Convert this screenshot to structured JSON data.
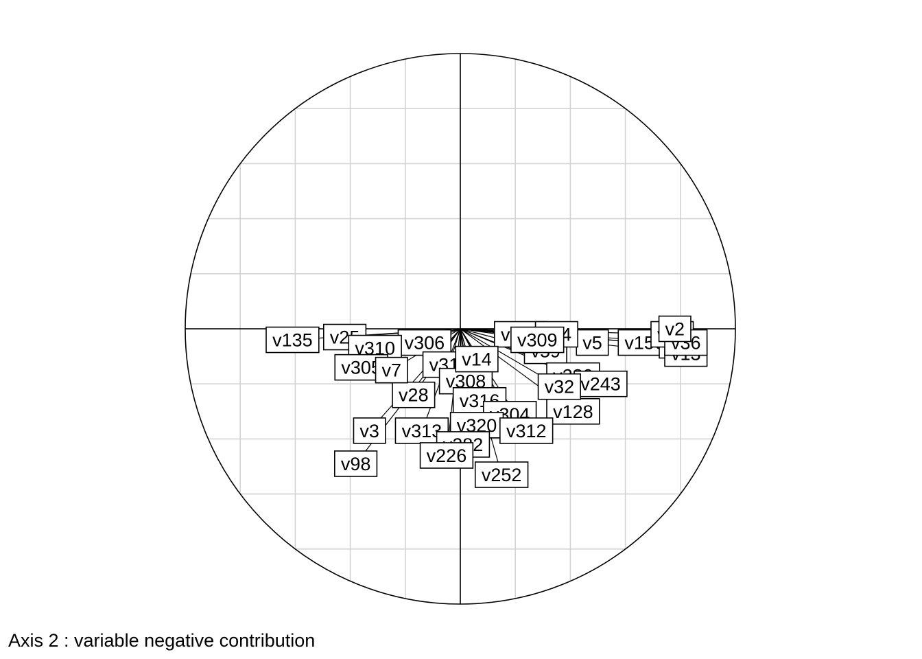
{
  "caption": "Axis 2 : variable negative contribution",
  "chart_data": {
    "type": "scatter",
    "title": "",
    "xlabel": "",
    "ylabel": "",
    "xlim": [
      -1,
      1
    ],
    "ylim": [
      -1,
      1
    ],
    "grid": true,
    "grid_step": 0.2,
    "unit_circle": true,
    "colors": {
      "grid": "#d3d3d3",
      "axes": "#000000",
      "circle": "#000000",
      "label_border": "#000000"
    },
    "points": [
      {
        "label": "v135",
        "x": -0.61,
        "y": -0.04
      },
      {
        "label": "v25",
        "x": -0.42,
        "y": -0.03
      },
      {
        "label": "v306",
        "x": -0.13,
        "y": -0.05
      },
      {
        "label": "v310",
        "x": -0.31,
        "y": -0.07
      },
      {
        "label": "v305",
        "x": -0.36,
        "y": -0.14
      },
      {
        "label": "v315",
        "x": -0.04,
        "y": -0.13
      },
      {
        "label": "v322",
        "x": 0.22,
        "y": -0.02
      },
      {
        "label": "v59",
        "x": 0.31,
        "y": -0.08
      },
      {
        "label": "v156",
        "x": 0.67,
        "y": -0.05
      },
      {
        "label": "v18",
        "x": 0.8,
        "y": -0.06
      },
      {
        "label": "v13",
        "x": 0.82,
        "y": -0.09
      },
      {
        "label": "v280",
        "x": 0.41,
        "y": -0.17
      },
      {
        "label": "v243",
        "x": 0.51,
        "y": -0.2
      },
      {
        "label": "v308",
        "x": 0.02,
        "y": -0.19
      },
      {
        "label": "v28",
        "x": -0.17,
        "y": -0.24
      },
      {
        "label": "v316",
        "x": 0.07,
        "y": -0.26
      },
      {
        "label": "v128",
        "x": 0.41,
        "y": -0.3
      },
      {
        "label": "v304",
        "x": 0.18,
        "y": -0.31
      },
      {
        "label": "v320",
        "x": 0.06,
        "y": -0.35
      },
      {
        "label": "v313",
        "x": -0.14,
        "y": -0.37
      },
      {
        "label": "v282",
        "x": 0.01,
        "y": -0.42
      },
      {
        "label": "v226",
        "x": -0.05,
        "y": -0.46
      },
      {
        "label": "v252",
        "x": 0.15,
        "y": -0.53
      },
      {
        "label": "v98",
        "x": -0.38,
        "y": -0.49
      },
      {
        "label": "v312",
        "x": 0.24,
        "y": -0.37
      },
      {
        "label": "v5",
        "x": 0.48,
        "y": -0.05
      },
      {
        "label": "v34",
        "x": 0.35,
        "y": -0.02
      },
      {
        "label": "v309",
        "x": 0.28,
        "y": -0.04
      },
      {
        "label": "v30",
        "x": 0.77,
        "y": -0.02
      },
      {
        "label": "v36",
        "x": 0.82,
        "y": -0.05
      },
      {
        "label": "v2",
        "x": 0.78,
        "y": 0.0
      },
      {
        "label": "v32",
        "x": 0.36,
        "y": -0.21
      },
      {
        "label": "v14",
        "x": 0.06,
        "y": -0.11
      },
      {
        "label": "v7",
        "x": -0.25,
        "y": -0.15
      },
      {
        "label": "v3",
        "x": -0.33,
        "y": -0.37
      }
    ]
  }
}
